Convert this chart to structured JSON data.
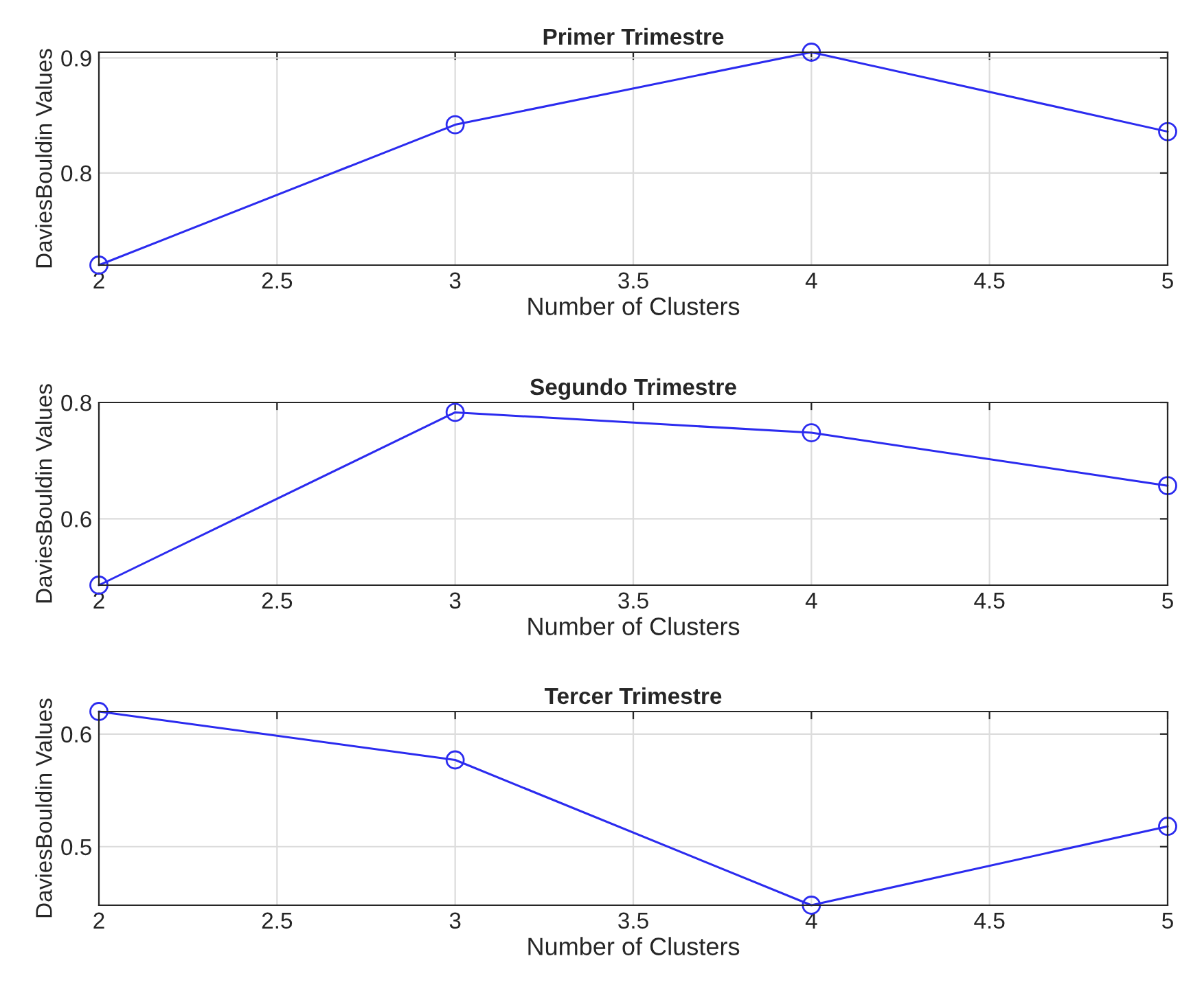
{
  "chart_data": [
    {
      "type": "line",
      "title": "Primer Trimestre",
      "xlabel": "Number of Clusters",
      "ylabel": "DaviesBouldin Values",
      "x": [
        2,
        3,
        4,
        5
      ],
      "series": [
        {
          "color": "#2b2bef",
          "values": [
            0.72,
            0.842,
            0.905,
            0.836
          ]
        }
      ],
      "xlim": [
        2,
        5
      ],
      "xticks": [
        2,
        2.5,
        3,
        3.5,
        4,
        4.5,
        5
      ],
      "ylim": [
        0.72,
        0.905
      ],
      "yticks": [
        0.8,
        0.9
      ],
      "grid": true,
      "marker": "circle",
      "line_style": "solid"
    },
    {
      "type": "line",
      "title": "Segundo Trimestre",
      "xlabel": "Number of Clusters",
      "ylabel": "DaviesBouldin Values",
      "x": [
        2,
        3,
        4,
        5
      ],
      "series": [
        {
          "color": "#2b2bef",
          "values": [
            0.486,
            0.783,
            0.748,
            0.657
          ]
        }
      ],
      "xlim": [
        2,
        5
      ],
      "xticks": [
        2,
        2.5,
        3,
        3.5,
        4,
        4.5,
        5
      ],
      "ylim": [
        0.486,
        0.8
      ],
      "yticks": [
        0.6,
        0.8
      ],
      "grid": true,
      "marker": "circle",
      "line_style": "solid"
    },
    {
      "type": "line",
      "title": "Tercer Trimestre",
      "xlabel": "Number of Clusters",
      "ylabel": "DaviesBouldin Values",
      "x": [
        2,
        3,
        4,
        5
      ],
      "series": [
        {
          "color": "#2b2bef",
          "values": [
            0.62,
            0.577,
            0.448,
            0.518
          ]
        }
      ],
      "xlim": [
        2,
        5
      ],
      "xticks": [
        2,
        2.5,
        3,
        3.5,
        4,
        4.5,
        5
      ],
      "ylim": [
        0.448,
        0.62
      ],
      "yticks": [
        0.5,
        0.6
      ],
      "grid": true,
      "marker": "circle",
      "line_style": "solid"
    }
  ]
}
